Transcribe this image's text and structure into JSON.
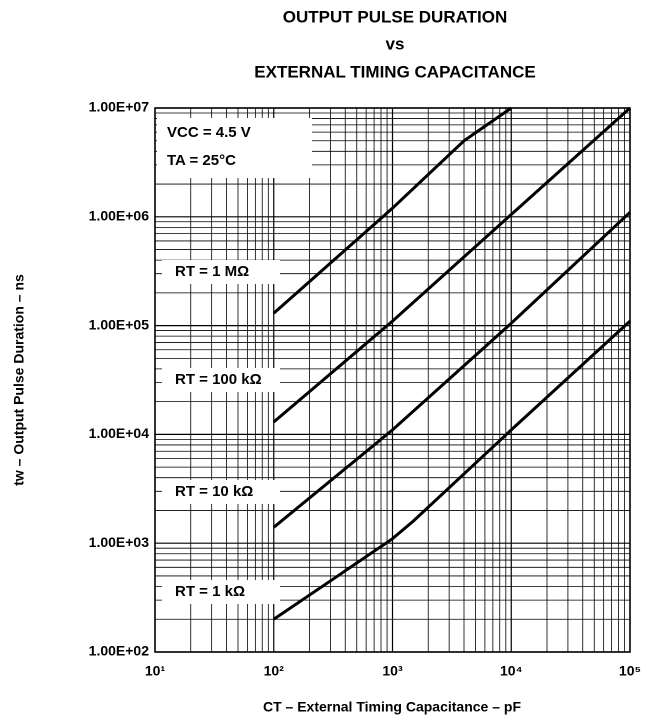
{
  "chart_data": {
    "type": "line",
    "title": [
      "OUTPUT PULSE DURATION",
      "vs",
      "EXTERNAL TIMING CAPACITANCE"
    ],
    "x_label": "CT – External Timing Capacitance – pF",
    "y_label": "tw – Output Pulse Duration – ns",
    "annotations": [
      "VCC = 4.5 V",
      "TA = 25°C"
    ],
    "xscale": "log",
    "yscale": "log",
    "grid": true,
    "minor_grid": true,
    "xlim": [
      10,
      100000
    ],
    "ylim": [
      100,
      10000000
    ],
    "xticks": [
      {
        "value": 10,
        "label": "10¹"
      },
      {
        "value": 100,
        "label": "10²"
      },
      {
        "value": 1000,
        "label": "10³"
      },
      {
        "value": 10000,
        "label": "10⁴"
      },
      {
        "value": 100000,
        "label": "10⁵"
      }
    ],
    "yticks": [
      {
        "value": 100,
        "label": "1.00E+02"
      },
      {
        "value": 1000,
        "label": "1.00E+03"
      },
      {
        "value": 10000,
        "label": "1.00E+04"
      },
      {
        "value": 100000,
        "label": "1.00E+05"
      },
      {
        "value": 1000000,
        "label": "1.00E+06"
      },
      {
        "value": 10000000,
        "label": "1.00E+07"
      }
    ],
    "series": [
      {
        "name": "RT = 1 MΩ",
        "color": "#000000",
        "x": [
          100,
          1000,
          4000,
          10000
        ],
        "values": [
          130000,
          1200000,
          5000000,
          10000000
        ]
      },
      {
        "name": "RT = 100 kΩ",
        "color": "#000000",
        "x": [
          100,
          1000,
          10000,
          100000
        ],
        "values": [
          13000,
          110000,
          1050000,
          10000000
        ]
      },
      {
        "name": "RT = 10 kΩ",
        "color": "#000000",
        "x": [
          100,
          1000,
          10000,
          100000
        ],
        "values": [
          1400,
          11000,
          105000,
          1100000
        ]
      },
      {
        "name": "RT = 1 kΩ",
        "color": "#000000",
        "x": [
          100,
          300,
          1000,
          1500,
          10000,
          100000
        ],
        "values": [
          200,
          450,
          1100,
          1600,
          11000,
          110000
        ]
      }
    ]
  }
}
